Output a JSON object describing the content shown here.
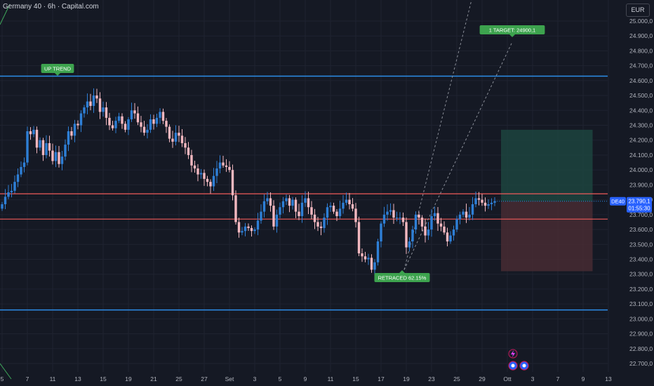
{
  "header": {
    "title": "Germany 40 · 6h · Capital.com",
    "currency": "EUR"
  },
  "chart_data": {
    "type": "candlestick",
    "ylim": [
      22650,
      25050
    ],
    "y_ticks": [
      22700,
      22800,
      22900,
      23000,
      23100,
      23200,
      23300,
      23400,
      23500,
      23600,
      23700,
      23800,
      23900,
      24000,
      24100,
      24200,
      24300,
      24400,
      24500,
      24600,
      24700,
      24800,
      24900,
      25000
    ],
    "y_tick_labels": [
      "22.700,0",
      "22.800,0",
      "22.900,0",
      "23.000,0",
      "23.100,0",
      "23.200,0",
      "23.300,0",
      "23.400,0",
      "23.500,0",
      "23.600,0",
      "23.700,0",
      "23.800,0",
      "23.900,0",
      "24.000,0",
      "24.100,0",
      "24.200,0",
      "24.300,0",
      "24.400,0",
      "24.500,0",
      "24.600,0",
      "24.700,0",
      "24.800,0",
      "24.900,0",
      "25.000,0"
    ],
    "x_ticks": [
      "5",
      "7",
      "11",
      "13",
      "15",
      "19",
      "21",
      "25",
      "27",
      "Set",
      "3",
      "5",
      "9",
      "11",
      "15",
      "17",
      "19",
      "23",
      "25",
      "29",
      "Ott",
      "3",
      "7",
      "9",
      "13"
    ],
    "x_tick_index": [
      0,
      8,
      16,
      24,
      32,
      40,
      48,
      56,
      64,
      72,
      80,
      88,
      96,
      104,
      112,
      120,
      128,
      136,
      144,
      152,
      160,
      168,
      176,
      184,
      192
    ],
    "levels": {
      "upper_blue": 24630,
      "lower_blue": 23060,
      "red_resistance": 23840,
      "red_support": 23670
    },
    "last_price": {
      "symbol": "DE40",
      "price": 23790.1,
      "price_label": "23.790,1",
      "countdown": "01:55:30"
    },
    "annotations": {
      "up_trend": "UP TREND",
      "target": "1  TARGET: 24900,1",
      "retraced": "RETRACED 62.15%"
    },
    "position": {
      "entry": 23790,
      "take_profit": 24270,
      "stop_loss": 23320,
      "start_index": 158,
      "end_index": 187
    },
    "closes": [
      23770,
      23820,
      23850,
      23860,
      23920,
      23970,
      24020,
      24050,
      24260,
      24240,
      24270,
      24150,
      24200,
      24100,
      24180,
      24130,
      24060,
      24120,
      24040,
      24090,
      24170,
      24260,
      24230,
      24310,
      24300,
      24380,
      24420,
      24460,
      24430,
      24500,
      24480,
      24390,
      24420,
      24350,
      24300,
      24280,
      24330,
      24360,
      24310,
      24270,
      24340,
      24400,
      24380,
      24320,
      24290,
      24250,
      24270,
      24340,
      24310,
      24350,
      24390,
      24330,
      24290,
      24210,
      24190,
      24250,
      24230,
      24180,
      24150,
      24100,
      24030,
      24010,
      23970,
      23980,
      23940,
      23920,
      23890,
      23960,
      24010,
      24050,
      24030,
      24020,
      24000,
      23830,
      23650,
      23580,
      23590,
      23620,
      23610,
      23590,
      23600,
      23660,
      23720,
      23790,
      23810,
      23760,
      23620,
      23700,
      23750,
      23790,
      23810,
      23760,
      23800,
      23720,
      23690,
      23780,
      23810,
      23750,
      23700,
      23650,
      23620,
      23610,
      23680,
      23750,
      23760,
      23720,
      23690,
      23740,
      23780,
      23800,
      23770,
      23740,
      23650,
      23440,
      23420,
      23400,
      23410,
      23330,
      23380,
      23520,
      23640,
      23700,
      23720,
      23730,
      23680,
      23680,
      23680,
      23650,
      23480,
      23520,
      23600,
      23700,
      23680,
      23620,
      23560,
      23600,
      23690,
      23710,
      23640,
      23620,
      23580,
      23520,
      23560,
      23600,
      23670,
      23700,
      23720,
      23680,
      23700,
      23770,
      23810,
      23800,
      23780,
      23760,
      23770,
      23780,
      23790
    ]
  }
}
